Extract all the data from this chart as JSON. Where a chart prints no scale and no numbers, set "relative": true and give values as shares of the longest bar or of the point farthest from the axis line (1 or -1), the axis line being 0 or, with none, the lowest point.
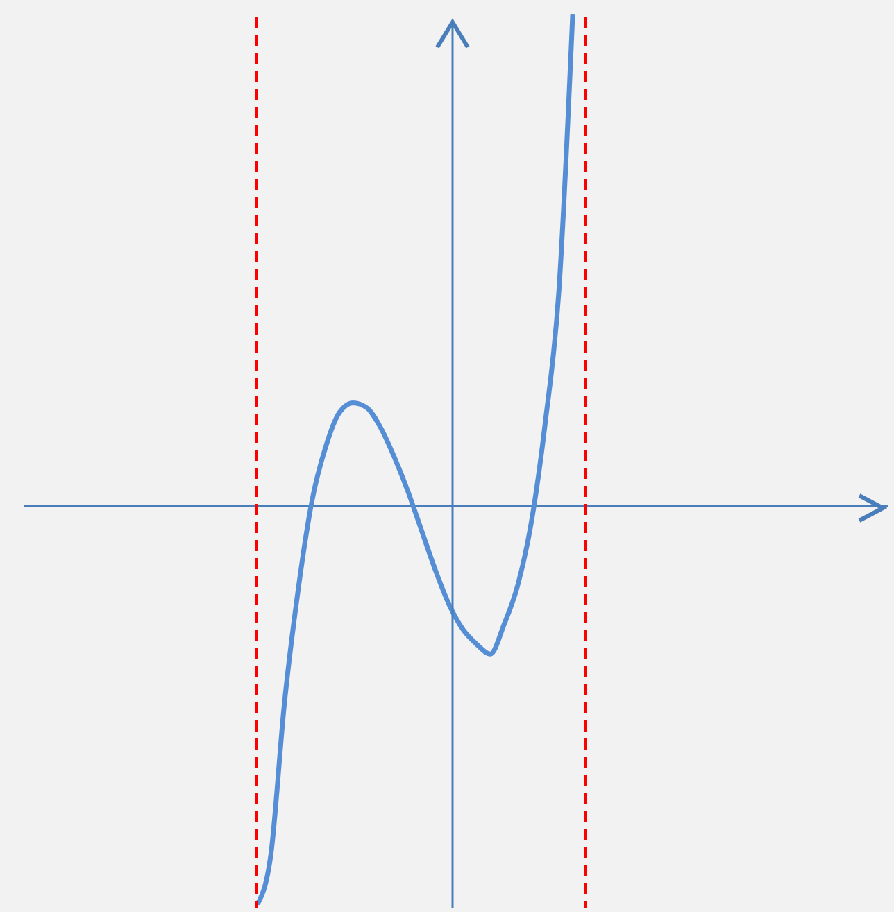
{
  "chart_data": {
    "type": "line",
    "relative": true,
    "tick_labels": false,
    "marker": "none",
    "line_style": "solid",
    "categories": [
      null,
      null,
      null,
      null,
      null,
      null,
      null,
      null,
      null,
      null,
      null,
      null,
      null,
      null,
      null,
      null,
      null,
      null,
      null,
      null,
      null,
      null,
      null,
      null,
      null,
      null,
      null,
      null,
      null,
      null,
      null,
      null,
      null,
      null,
      null,
      null,
      null,
      null,
      null,
      null,
      null,
      null,
      null,
      null,
      null,
      null,
      null,
      null,
      null,
      null,
      null,
      null,
      null,
      null,
      null,
      null,
      null,
      null,
      null,
      null,
      null,
      null,
      null,
      null
    ],
    "series": [
      {
        "color": "#558ed5",
        "values": [
          null,
          null,
          null,
          null,
          null,
          null,
          null,
          null,
          null,
          null,
          null,
          null,
          null,
          null,
          null,
          null,
          null,
          -0.81,
          -0.71,
          -0.4,
          -0.17,
          0.01,
          0.12,
          0.19,
          0.21,
          0.2,
          0.16,
          0.1,
          0.03,
          -0.05,
          -0.13,
          -0.2,
          -0.25,
          -0.28,
          -0.3,
          -0.24,
          -0.16,
          -0.03,
          0.17,
          0.44,
          1,
          null,
          null,
          null,
          null,
          null,
          null,
          null,
          null,
          null,
          null,
          null,
          null,
          null,
          null,
          null,
          null,
          null,
          null,
          null,
          null,
          null,
          null,
          null
        ]
      }
    ],
    "ref_lines": [
      {
        "axis": "y",
        "value": 0,
        "color": "#4a7ebb",
        "line_style": "solid"
      }
    ]
  }
}
